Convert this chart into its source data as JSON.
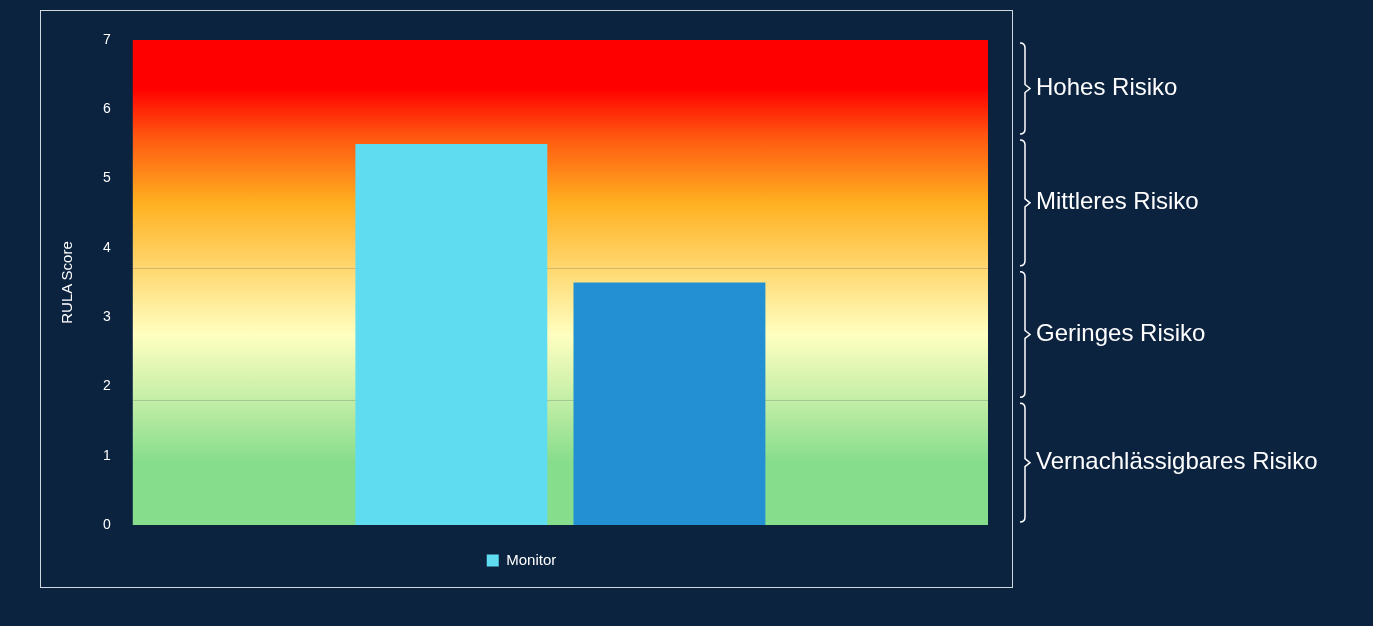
{
  "chart_data": {
    "type": "bar",
    "ylabel": "RULA Score",
    "categories": [
      null
    ],
    "series": [
      {
        "name": "Monitor",
        "color": "#5fdcf0",
        "values": [
          5.5
        ]
      },
      {
        "color": "#2390d4",
        "values": [
          3.5
        ]
      }
    ],
    "ylim": [
      0,
      7
    ],
    "yticks": [
      0,
      1,
      2,
      3,
      4,
      5,
      6,
      7
    ],
    "grid": false,
    "legend": "bottom",
    "bands": [
      {
        "axis": "y",
        "from": 0,
        "to": 1.8,
        "label": "Vernachlässigbares Risiko",
        "color": "#86dd8c"
      },
      {
        "axis": "y",
        "from": 1.8,
        "to": 3.7,
        "label": "Geringes Risiko",
        "color": "#ffffc0"
      },
      {
        "axis": "y",
        "from": 3.7,
        "to": 5.6,
        "label": "Mittleres Risiko",
        "color": "#ffb020"
      },
      {
        "axis": "y",
        "from": 5.6,
        "to": 7,
        "label": "Hohes Risiko",
        "color": "#ff0000"
      }
    ]
  }
}
